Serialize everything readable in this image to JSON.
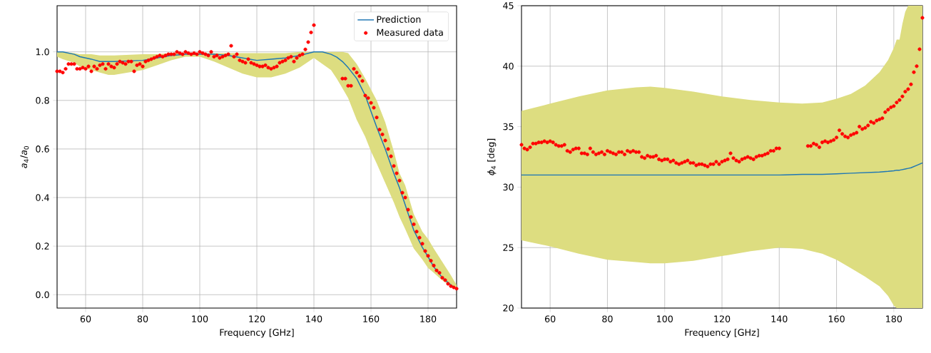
{
  "chart_data": [
    {
      "type": "line",
      "xlabel": "Frequency [GHz]",
      "ylabel": "*a*$_{4}$/*a*$_{0}$",
      "xlim": [
        50,
        190
      ],
      "ylim": [
        -0.055,
        1.19
      ],
      "xticks": [
        60,
        80,
        100,
        120,
        140,
        160,
        180
      ],
      "yticks": [
        {
          "value": 0,
          "label": "0.0"
        },
        {
          "value": 0.2,
          "label": "0.2"
        },
        {
          "value": 0.4,
          "label": "0.4"
        },
        {
          "value": 0.6,
          "label": "0.6"
        },
        {
          "value": 0.8,
          "label": "0.8"
        },
        {
          "value": 1,
          "label": "1.0"
        }
      ],
      "grid": true,
      "legend": "top right",
      "series": [
        {
          "name": "Prediction",
          "color": "#1f77b4",
          "line_style": "solid",
          "x": [
            50,
            52,
            56,
            58,
            60,
            62,
            65,
            68,
            70,
            80,
            85,
            90,
            95,
            100,
            105,
            110,
            115,
            120,
            125,
            130,
            135,
            140,
            143,
            146,
            148,
            150,
            152,
            155,
            158,
            160,
            162,
            165,
            168,
            170,
            172,
            175,
            178,
            180,
            182,
            185,
            188,
            190
          ],
          "values": [
            1.0,
            1.0,
            0.99,
            0.98,
            0.975,
            0.97,
            0.96,
            0.96,
            0.96,
            0.965,
            0.975,
            0.985,
            0.99,
            0.99,
            0.99,
            0.985,
            0.975,
            0.965,
            0.97,
            0.975,
            0.985,
            1.0,
            1.0,
            0.99,
            0.978,
            0.96,
            0.935,
            0.89,
            0.82,
            0.755,
            0.69,
            0.6,
            0.5,
            0.44,
            0.37,
            0.265,
            0.195,
            0.156,
            0.115,
            0.07,
            0.04,
            0.024
          ],
          "lower": [
            0.98,
            0.97,
            0.955,
            0.94,
            0.93,
            0.925,
            0.915,
            0.905,
            0.905,
            0.925,
            0.945,
            0.965,
            0.98,
            0.98,
            0.96,
            0.935,
            0.91,
            0.895,
            0.895,
            0.91,
            0.935,
            0.975,
            0.95,
            0.925,
            0.89,
            0.85,
            0.81,
            0.72,
            0.65,
            0.59,
            0.54,
            0.46,
            0.38,
            0.32,
            0.27,
            0.19,
            0.145,
            0.11,
            0.09,
            0.059,
            0.035,
            0.02
          ],
          "upper": [
            1.0,
            1.0,
            0.995,
            0.99,
            0.99,
            0.99,
            0.985,
            0.985,
            0.985,
            0.99,
            0.99,
            0.995,
            0.995,
            0.995,
            0.995,
            0.995,
            0.995,
            0.995,
            0.995,
            0.995,
            1.0,
            1.0,
            1.0,
            1.0,
            1.0,
            1.0,
            0.995,
            0.95,
            0.89,
            0.845,
            0.8,
            0.71,
            0.59,
            0.5,
            0.45,
            0.332,
            0.26,
            0.23,
            0.19,
            0.135,
            0.08,
            0.04
          ]
        },
        {
          "name": "Measured data",
          "type": "scatter",
          "color": "#ff0000",
          "marker": "circle",
          "x": [
            50,
            51,
            52,
            53,
            54,
            55,
            56,
            57,
            58,
            59,
            60,
            61,
            62,
            63,
            64,
            65,
            66,
            67,
            68,
            69,
            70,
            71,
            72,
            73,
            74,
            75,
            76,
            77,
            78,
            79,
            80,
            81,
            82,
            83,
            84,
            85,
            86,
            87,
            88,
            89,
            90,
            91,
            92,
            93,
            94,
            95,
            96,
            97,
            98,
            99,
            100,
            101,
            102,
            103,
            104,
            105,
            106,
            107,
            108,
            109,
            110,
            111,
            112,
            113,
            114,
            115,
            116,
            117,
            118,
            119,
            120,
            121,
            122,
            123,
            124,
            125,
            126,
            127,
            128,
            129,
            130,
            131,
            132,
            133,
            134,
            135,
            136,
            137,
            138,
            139,
            140,
            150,
            151,
            152,
            153,
            154,
            155,
            156,
            157,
            158,
            159,
            160,
            161,
            162,
            163,
            164,
            165,
            166,
            167,
            168,
            169,
            170,
            171,
            172,
            173,
            174,
            175,
            176,
            177,
            178,
            179,
            180,
            181,
            182,
            183,
            184,
            185,
            186,
            187,
            188,
            189,
            190
          ],
          "values": [
            0.92,
            0.92,
            0.915,
            0.93,
            0.95,
            0.95,
            0.95,
            0.93,
            0.93,
            0.935,
            0.93,
            0.94,
            0.92,
            0.94,
            0.93,
            0.945,
            0.95,
            0.93,
            0.95,
            0.94,
            0.935,
            0.95,
            0.96,
            0.955,
            0.95,
            0.96,
            0.96,
            0.92,
            0.945,
            0.95,
            0.94,
            0.96,
            0.965,
            0.97,
            0.975,
            0.98,
            0.985,
            0.98,
            0.985,
            0.99,
            0.99,
            0.99,
            1.0,
            0.995,
            0.99,
            1.0,
            0.995,
            0.99,
            0.995,
            0.99,
            1.0,
            0.995,
            0.99,
            0.985,
            1.0,
            0.98,
            0.985,
            0.975,
            0.98,
            0.985,
            0.99,
            1.025,
            0.98,
            0.99,
            0.965,
            0.96,
            0.955,
            0.97,
            0.955,
            0.95,
            0.945,
            0.94,
            0.94,
            0.945,
            0.935,
            0.93,
            0.935,
            0.94,
            0.955,
            0.96,
            0.965,
            0.975,
            0.98,
            0.96,
            0.975,
            0.985,
            0.99,
            1.01,
            1.04,
            1.08,
            1.11,
            0.89,
            0.89,
            0.86,
            0.86,
            0.93,
            0.915,
            0.9,
            0.88,
            0.82,
            0.81,
            0.79,
            0.77,
            0.73,
            0.68,
            0.66,
            0.635,
            0.6,
            0.57,
            0.53,
            0.5,
            0.47,
            0.42,
            0.4,
            0.35,
            0.32,
            0.29,
            0.26,
            0.235,
            0.21,
            0.18,
            0.16,
            0.14,
            0.12,
            0.1,
            0.09,
            0.07,
            0.06,
            0.045,
            0.035,
            0.03,
            0.025
          ]
        }
      ]
    },
    {
      "type": "line",
      "xlabel": "Frequency [GHz]",
      "ylabel": "*ϕ*$_{4}$ [deg]",
      "xlim": [
        50,
        190
      ],
      "ylim": [
        20,
        45
      ],
      "xticks": [
        60,
        80,
        100,
        120,
        140,
        160,
        180
      ],
      "yticks": [
        20,
        25,
        30,
        35,
        40,
        45
      ],
      "grid": true,
      "series": [
        {
          "color": "#1f77b4",
          "line_style": "solid",
          "x": [
            50,
            60,
            70,
            80,
            90,
            95,
            100,
            110,
            120,
            130,
            140,
            148,
            155,
            160,
            165,
            170,
            175,
            178,
            180,
            181,
            182,
            183,
            184,
            185,
            186,
            188,
            190
          ],
          "values": [
            31.0,
            31.0,
            31.0,
            31.0,
            31.0,
            31.0,
            31.0,
            31.0,
            31.0,
            31.0,
            31.0,
            31.05,
            31.05,
            31.1,
            31.15,
            31.2,
            31.25,
            31.3,
            31.35,
            31.4,
            31.4,
            31.45,
            31.5,
            31.55,
            31.6,
            31.8,
            32.0
          ],
          "lower": [
            25.6,
            25.1,
            24.5,
            24.0,
            23.8,
            23.7,
            23.7,
            23.9,
            24.3,
            24.7,
            25.0,
            24.9,
            24.5,
            24.0,
            23.3,
            22.6,
            21.8,
            21.0,
            20.2,
            20.0,
            20.0,
            20.0,
            20.0,
            20.0,
            20.0,
            20.0,
            20.0
          ],
          "upper": [
            36.3,
            36.9,
            37.5,
            38.0,
            38.25,
            38.3,
            38.2,
            37.9,
            37.5,
            37.2,
            37.0,
            36.9,
            37.0,
            37.3,
            37.7,
            38.4,
            39.5,
            40.5,
            41.5,
            42.2,
            42.2,
            43.5,
            44.5,
            45.0,
            45.0,
            45.0,
            45.0
          ]
        },
        {
          "type": "scatter",
          "color": "#ff0000",
          "marker": "circle",
          "x": [
            50,
            51,
            52,
            53,
            54,
            55,
            56,
            57,
            58,
            59,
            60,
            61,
            62,
            63,
            64,
            65,
            66,
            67,
            68,
            69,
            70,
            71,
            72,
            73,
            74,
            75,
            76,
            77,
            78,
            79,
            80,
            81,
            82,
            83,
            84,
            85,
            86,
            87,
            88,
            89,
            90,
            91,
            92,
            93,
            94,
            95,
            96,
            97,
            98,
            99,
            100,
            101,
            102,
            103,
            104,
            105,
            106,
            107,
            108,
            109,
            110,
            111,
            112,
            113,
            114,
            115,
            116,
            117,
            118,
            119,
            120,
            121,
            122,
            123,
            124,
            125,
            126,
            127,
            128,
            129,
            130,
            131,
            132,
            133,
            134,
            135,
            136,
            137,
            138,
            139,
            140,
            150,
            151,
            152,
            153,
            154,
            155,
            156,
            157,
            158,
            159,
            160,
            161,
            162,
            163,
            164,
            165,
            166,
            167,
            168,
            169,
            170,
            171,
            172,
            173,
            174,
            175,
            176,
            177,
            178,
            179,
            180,
            181,
            182,
            183,
            184,
            185,
            186,
            187,
            188,
            189,
            190
          ],
          "values": [
            33.5,
            33.2,
            33.1,
            33.3,
            33.6,
            33.6,
            33.7,
            33.7,
            33.8,
            33.7,
            33.8,
            33.7,
            33.5,
            33.4,
            33.4,
            33.5,
            33.0,
            32.9,
            33.1,
            33.2,
            33.2,
            32.8,
            32.8,
            32.7,
            33.2,
            32.9,
            32.7,
            32.8,
            32.9,
            32.7,
            33.0,
            32.9,
            32.8,
            32.7,
            32.9,
            32.9,
            32.7,
            33.0,
            32.9,
            33.0,
            32.9,
            32.9,
            32.5,
            32.4,
            32.6,
            32.5,
            32.5,
            32.6,
            32.3,
            32.2,
            32.3,
            32.3,
            32.1,
            32.2,
            32.0,
            31.9,
            32.0,
            32.1,
            32.2,
            32.0,
            32.0,
            31.8,
            31.9,
            31.9,
            31.8,
            31.7,
            31.9,
            31.9,
            32.1,
            31.9,
            32.1,
            32.2,
            32.3,
            32.8,
            32.4,
            32.2,
            32.1,
            32.3,
            32.4,
            32.5,
            32.4,
            32.3,
            32.5,
            32.6,
            32.6,
            32.7,
            32.8,
            33.0,
            33.0,
            33.2,
            33.2,
            33.4,
            33.4,
            33.6,
            33.5,
            33.3,
            33.7,
            33.8,
            33.7,
            33.8,
            33.9,
            34.1,
            34.7,
            34.4,
            34.2,
            34.1,
            34.3,
            34.4,
            34.5,
            35.0,
            34.8,
            34.9,
            35.1,
            35.4,
            35.3,
            35.5,
            35.6,
            35.7,
            36.2,
            36.4,
            36.6,
            36.7,
            37.0,
            37.2,
            37.5,
            37.9,
            38.1,
            38.5,
            39.5,
            40.0,
            41.4,
            44.0
          ]
        }
      ]
    }
  ]
}
